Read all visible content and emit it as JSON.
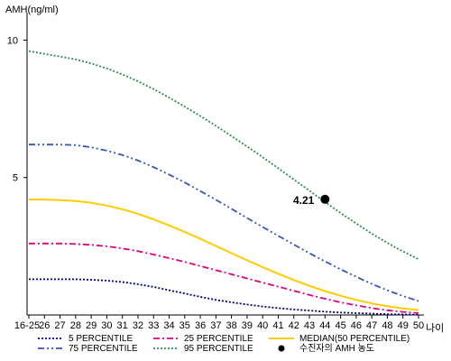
{
  "chart_data": {
    "type": "line",
    "ylabel": "AMH(ng/ml)",
    "xlabel": "나이",
    "x_categories": [
      "16-25",
      "26",
      "27",
      "28",
      "29",
      "30",
      "31",
      "32",
      "33",
      "34",
      "35",
      "36",
      "37",
      "38",
      "39",
      "40",
      "41",
      "42",
      "43",
      "44",
      "45",
      "46",
      "47",
      "48",
      "49",
      "50"
    ],
    "y_ticks": [
      5,
      10
    ],
    "ylim": [
      0,
      11
    ],
    "grid": false,
    "legend_position": "bottom",
    "series": [
      {
        "name": "5 PERCENTILE",
        "color": "#000080",
        "style": "dotted",
        "values": [
          1.3,
          1.3,
          1.3,
          1.3,
          1.28,
          1.25,
          1.2,
          1.12,
          1.02,
          0.9,
          0.78,
          0.66,
          0.55,
          0.46,
          0.38,
          0.31,
          0.25,
          0.2,
          0.16,
          0.12,
          0.09,
          0.07,
          0.05,
          0.03,
          0.02,
          0.01
        ]
      },
      {
        "name": "25 PERCENTILE",
        "color": "#e0007f",
        "style": "dash-dot",
        "values": [
          2.6,
          2.6,
          2.6,
          2.58,
          2.55,
          2.5,
          2.42,
          2.32,
          2.2,
          2.07,
          1.93,
          1.78,
          1.63,
          1.48,
          1.33,
          1.18,
          1.03,
          0.88,
          0.73,
          0.59,
          0.46,
          0.35,
          0.25,
          0.17,
          0.11,
          0.07
        ]
      },
      {
        "name": "MEDIAN(50 PERCENTILE)",
        "color": "#ffcc00",
        "style": "solid",
        "values": [
          4.2,
          4.2,
          4.18,
          4.15,
          4.08,
          3.98,
          3.85,
          3.68,
          3.48,
          3.26,
          3.02,
          2.77,
          2.51,
          2.25,
          1.99,
          1.74,
          1.5,
          1.27,
          1.06,
          0.87,
          0.7,
          0.55,
          0.42,
          0.32,
          0.24,
          0.18
        ]
      },
      {
        "name": "75 PERCENTILE",
        "color": "#3355bb",
        "style": "dash-dot-dot",
        "values": [
          6.2,
          6.2,
          6.2,
          6.18,
          6.1,
          5.98,
          5.82,
          5.62,
          5.38,
          5.11,
          4.82,
          4.51,
          4.19,
          3.86,
          3.53,
          3.2,
          2.88,
          2.56,
          2.25,
          1.95,
          1.66,
          1.39,
          1.13,
          0.9,
          0.69,
          0.51
        ]
      },
      {
        "name": "95 PERCENTILE",
        "color": "#2e8b57",
        "style": "dotted",
        "values": [
          9.6,
          9.5,
          9.4,
          9.3,
          9.15,
          8.97,
          8.75,
          8.5,
          8.22,
          7.91,
          7.58,
          7.24,
          6.88,
          6.51,
          6.13,
          5.74,
          5.34,
          4.93,
          4.52,
          4.11,
          3.71,
          3.33,
          2.96,
          2.62,
          2.31,
          2.03
        ]
      }
    ],
    "marker": {
      "name": "수진자의 AMH 농도",
      "x": "44",
      "y": 4.21,
      "label": "4.21",
      "color": "#000000"
    }
  }
}
